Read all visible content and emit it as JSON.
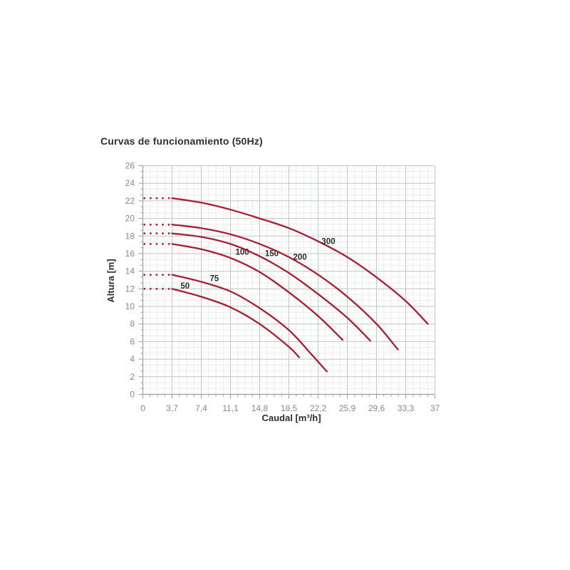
{
  "chart_data": {
    "type": "line",
    "title": "Curvas de funcionamiento (50Hz)",
    "xlabel": "Caudal [m³/h]",
    "ylabel": "Altura [m]",
    "xlim": [
      0,
      37
    ],
    "ylim": [
      0,
      26
    ],
    "grid": true,
    "legend_position": "inline-curve-labels",
    "x_ticks": [
      {
        "value": 0,
        "label": "0"
      },
      {
        "value": 3.7,
        "label": "3,7"
      },
      {
        "value": 7.4,
        "label": "7,4"
      },
      {
        "value": 11.1,
        "label": "11,1"
      },
      {
        "value": 14.8,
        "label": "14,8"
      },
      {
        "value": 18.5,
        "label": "18,5"
      },
      {
        "value": 22.2,
        "label": "22,2"
      },
      {
        "value": 25.9,
        "label": "25,9"
      },
      {
        "value": 29.6,
        "label": "29,6"
      },
      {
        "value": 33.3,
        "label": "33,3"
      },
      {
        "value": 37,
        "label": "37"
      }
    ],
    "y_ticks": [
      {
        "value": 0,
        "label": "0"
      },
      {
        "value": 2,
        "label": "2"
      },
      {
        "value": 4,
        "label": "4"
      },
      {
        "value": 6,
        "label": "6"
      },
      {
        "value": 8,
        "label": "8"
      },
      {
        "value": 10,
        "label": "10"
      },
      {
        "value": 12,
        "label": "12"
      },
      {
        "value": 14,
        "label": "14"
      },
      {
        "value": 16,
        "label": "16"
      },
      {
        "value": 18,
        "label": "18"
      },
      {
        "value": 20,
        "label": "20"
      },
      {
        "value": 22,
        "label": "22"
      },
      {
        "value": 24,
        "label": "24"
      },
      {
        "value": 26,
        "label": "26"
      }
    ],
    "series": [
      {
        "name": "50",
        "label": "50",
        "label_pos": [
          5.35,
          12.35
        ],
        "dotted": {
          "from": 0.2,
          "to": 3.3,
          "head": 12.0
        },
        "points": [
          [
            3.7,
            12.0
          ],
          [
            7.4,
            11.1
          ],
          [
            11.1,
            9.9
          ],
          [
            14.8,
            8.0
          ],
          [
            18.5,
            5.4
          ],
          [
            19.8,
            4.2
          ]
        ]
      },
      {
        "name": "75",
        "label": "75",
        "label_pos": [
          9.05,
          13.2
        ],
        "dotted": {
          "from": 0.2,
          "to": 3.3,
          "head": 13.6
        },
        "points": [
          [
            3.7,
            13.6
          ],
          [
            7.4,
            12.8
          ],
          [
            11.1,
            11.7
          ],
          [
            14.8,
            9.8
          ],
          [
            18.5,
            7.3
          ],
          [
            21.3,
            4.6
          ],
          [
            23.3,
            2.6
          ]
        ]
      },
      {
        "name": "100",
        "label": "100",
        "label_pos": [
          12.6,
          16.2
        ],
        "dotted": {
          "from": 0.2,
          "to": 3.3,
          "head": 17.1
        },
        "points": [
          [
            3.7,
            17.1
          ],
          [
            7.4,
            16.5
          ],
          [
            11.1,
            15.5
          ],
          [
            14.8,
            13.9
          ],
          [
            18.5,
            11.6
          ],
          [
            22.2,
            8.9
          ],
          [
            25.3,
            6.2
          ]
        ]
      },
      {
        "name": "150",
        "label": "150",
        "label_pos": [
          16.33,
          16.05
        ],
        "dotted": {
          "from": 0.2,
          "to": 3.3,
          "head": 18.3
        },
        "points": [
          [
            3.7,
            18.3
          ],
          [
            7.4,
            17.9
          ],
          [
            11.1,
            17.1
          ],
          [
            14.8,
            15.7
          ],
          [
            18.5,
            13.8
          ],
          [
            22.2,
            11.4
          ],
          [
            25.9,
            8.7
          ],
          [
            28.8,
            6.1
          ]
        ]
      },
      {
        "name": "200",
        "label": "200",
        "label_pos": [
          19.9,
          15.65
        ],
        "dotted": {
          "from": 0.2,
          "to": 3.3,
          "head": 19.3
        },
        "points": [
          [
            3.7,
            19.3
          ],
          [
            7.4,
            18.9
          ],
          [
            11.1,
            18.2
          ],
          [
            14.8,
            17.1
          ],
          [
            18.5,
            15.6
          ],
          [
            22.2,
            13.6
          ],
          [
            25.9,
            11.1
          ],
          [
            29.6,
            8.0
          ],
          [
            32.3,
            5.1
          ]
        ]
      },
      {
        "name": "300",
        "label": "300",
        "label_pos": [
          23.5,
          17.4
        ],
        "dotted": {
          "from": 0.2,
          "to": 3.3,
          "head": 22.3
        },
        "points": [
          [
            3.7,
            22.3
          ],
          [
            7.4,
            21.8
          ],
          [
            11.1,
            21.0
          ],
          [
            14.8,
            20.0
          ],
          [
            18.5,
            18.9
          ],
          [
            22.2,
            17.4
          ],
          [
            25.9,
            15.6
          ],
          [
            29.6,
            13.3
          ],
          [
            33.3,
            10.6
          ],
          [
            36.1,
            8.0
          ]
        ]
      }
    ]
  },
  "style": {
    "curve_color": "#a81f33",
    "major_grid_color": "#c3c8c5",
    "minor_grid_color": "#ebeeec",
    "axis_color": "#9f9f9f",
    "plot_background": "#fcfdfc"
  }
}
